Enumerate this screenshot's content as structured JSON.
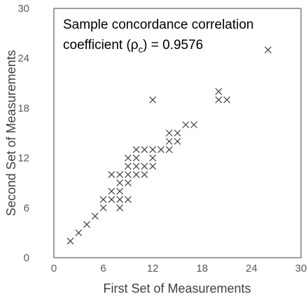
{
  "chart_data": {
    "type": "scatter",
    "title": "",
    "xlabel": "First Set of Measurements",
    "ylabel": "Second Set of Measurements",
    "xlim": [
      0,
      30
    ],
    "ylim": [
      0,
      30
    ],
    "xticks": [
      0,
      6,
      12,
      18,
      24,
      30
    ],
    "yticks": [
      0,
      6,
      12,
      18,
      24,
      30
    ],
    "grid": false,
    "marker": "x",
    "annotation": {
      "line1": "Sample concordance correlation",
      "line2_prefix": "coefficient (ρ",
      "line2_sub": "c",
      "line2_suffix": ") = 0.9576"
    },
    "points": [
      [
        2,
        2
      ],
      [
        3,
        3
      ],
      [
        4,
        4
      ],
      [
        5,
        5
      ],
      [
        6,
        6
      ],
      [
        6,
        7
      ],
      [
        7,
        7
      ],
      [
        7,
        8
      ],
      [
        7,
        10
      ],
      [
        8,
        6
      ],
      [
        8,
        7
      ],
      [
        8,
        8
      ],
      [
        8,
        9
      ],
      [
        8,
        10
      ],
      [
        9,
        7
      ],
      [
        9,
        9
      ],
      [
        9,
        10
      ],
      [
        9,
        11
      ],
      [
        9,
        12
      ],
      [
        10,
        10
      ],
      [
        10,
        11
      ],
      [
        10,
        12
      ],
      [
        10,
        13
      ],
      [
        11,
        10
      ],
      [
        11,
        11
      ],
      [
        11,
        13
      ],
      [
        12,
        11
      ],
      [
        12,
        12
      ],
      [
        12,
        13
      ],
      [
        12,
        19
      ],
      [
        13,
        13
      ],
      [
        14,
        13
      ],
      [
        14,
        14
      ],
      [
        14,
        15
      ],
      [
        15,
        14
      ],
      [
        15,
        15
      ],
      [
        16,
        16
      ],
      [
        17,
        16
      ],
      [
        20,
        19
      ],
      [
        20,
        20
      ],
      [
        21,
        19
      ],
      [
        26,
        25
      ]
    ]
  },
  "colors": {
    "marker": "#404040",
    "axis": "#404040",
    "tick_text": "#595959"
  }
}
